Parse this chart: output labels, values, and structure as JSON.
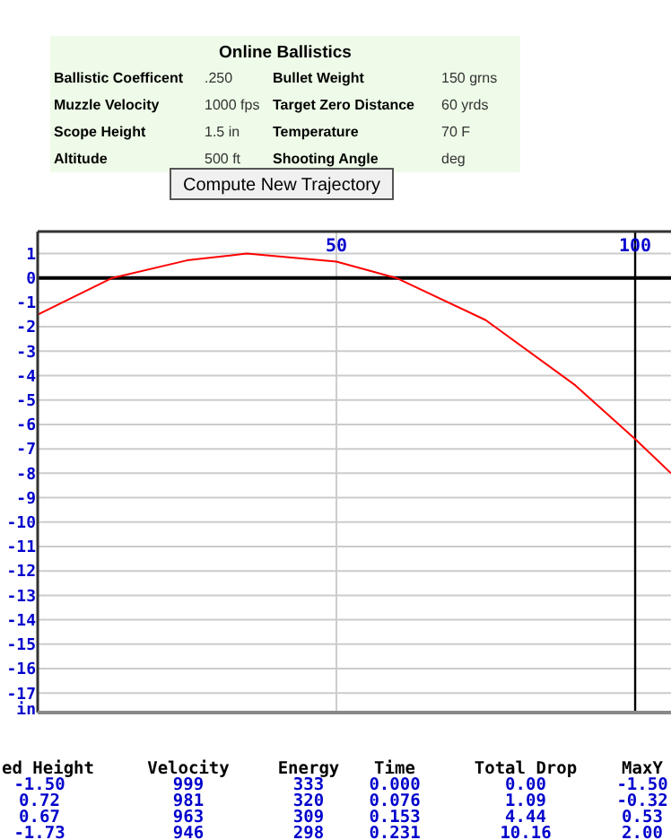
{
  "chart_data": [
    {
      "type": "other",
      "title": "Online Ballistics",
      "annotations": [
        "Ballistic Coefficent",
        ".250",
        "Bullet Weight",
        "150 grns",
        "Muzzle Velocity",
        "1000 fps",
        "Target Zero Distance",
        "60 yrds",
        "Scope Height",
        "1.5 in",
        "Temperature",
        "70 F",
        "Altitude",
        "500 ft",
        "Shooting Angle",
        "deg",
        "Compute New Trajectory"
      ]
    },
    {
      "type": "line",
      "ylabel": "in",
      "xlim": [
        0,
        106
      ],
      "ylim": [
        -17.8,
        1.9
      ],
      "xticks": [
        50,
        100
      ],
      "yticks": [
        1,
        0,
        -1,
        -2,
        -3,
        -4,
        -5,
        -6,
        -7,
        -8,
        -9,
        -10,
        -11,
        -12,
        -13,
        -14,
        -15,
        -16,
        -17
      ],
      "grid": true,
      "marker": "none",
      "line_style": "solid",
      "ref_lines": [
        {
          "axis": "y",
          "value": 0,
          "color": "#000000"
        },
        {
          "axis": "x",
          "value": 100,
          "color": "#000000"
        }
      ],
      "series": [
        {
          "color": "#ff0000",
          "x": [
            0,
            12.5,
            25,
            35,
            50,
            60,
            75,
            90,
            100,
            106
          ],
          "values": [
            -1.5,
            0,
            0.72,
            1.0,
            0.67,
            0,
            -1.73,
            -4.4,
            -6.6,
            -8.0
          ]
        }
      ]
    },
    {
      "type": "other",
      "annotations": [
        "ed Height",
        "Velocity",
        "Energy",
        "Time",
        "Total Drop",
        "MaxY",
        "-1.50",
        "999",
        "333",
        "0.000",
        "0.00",
        "-1.50",
        "0.72",
        "981",
        "320",
        "0.076",
        "1.09",
        "-0.32",
        "0.67",
        "963",
        "309",
        "0.153",
        "4.44",
        "0.53",
        "-1.73",
        "946",
        "298",
        "0.231",
        "10.16",
        "2.00"
      ]
    }
  ]
}
